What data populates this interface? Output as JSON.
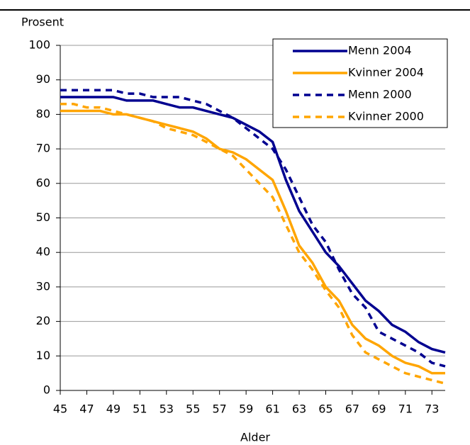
{
  "chart_data": {
    "type": "line",
    "y_label": "Prosent",
    "x_label": "Alder",
    "x": [
      45,
      46,
      47,
      48,
      49,
      50,
      51,
      52,
      53,
      54,
      55,
      56,
      57,
      58,
      59,
      60,
      61,
      62,
      63,
      64,
      65,
      66,
      67,
      68,
      69,
      70,
      71,
      72,
      73,
      74
    ],
    "series": [
      {
        "name": "Menn 2004",
        "color": "#000090",
        "dashed": false,
        "values": [
          85,
          85,
          85,
          85,
          85,
          84,
          84,
          84,
          83,
          82,
          82,
          81,
          80,
          79,
          77,
          75,
          72,
          61,
          52,
          46,
          40,
          36,
          31,
          26,
          23,
          19,
          17,
          14,
          12,
          11
        ]
      },
      {
        "name": "Kvinner 2004",
        "color": "#ffa500",
        "dashed": false,
        "values": [
          81,
          81,
          81,
          81,
          80,
          80,
          79,
          78,
          77,
          76,
          75,
          73,
          70,
          69,
          67,
          64,
          61,
          52,
          42,
          37,
          30,
          26,
          19,
          15,
          13,
          10,
          8,
          7,
          5,
          5
        ]
      },
      {
        "name": "Menn 2000",
        "color": "#000090",
        "dashed": true,
        "values": [
          87,
          87,
          87,
          87,
          87,
          86,
          86,
          85,
          85,
          85,
          84,
          83,
          81,
          79,
          76,
          73,
          70,
          64,
          56,
          48,
          43,
          35,
          28,
          24,
          17,
          15,
          13,
          11,
          8,
          7
        ]
      },
      {
        "name": "Kvinner 2000",
        "color": "#ffa500",
        "dashed": true,
        "values": [
          83,
          83,
          82,
          82,
          81,
          80,
          79,
          78,
          76,
          75,
          74,
          72,
          70,
          68,
          64,
          60,
          56,
          48,
          40,
          35,
          29,
          24,
          16,
          11,
          9,
          7,
          5,
          4,
          3,
          2
        ]
      }
    ],
    "xlim": [
      45,
      74
    ],
    "xticks": [
      45,
      47,
      49,
      51,
      53,
      55,
      57,
      59,
      61,
      63,
      65,
      67,
      69,
      71,
      73
    ],
    "ylim": [
      0,
      100
    ],
    "yticks": [
      0,
      10,
      20,
      30,
      40,
      50,
      60,
      70,
      80,
      90,
      100
    ],
    "grid": true,
    "legend": "upper right"
  }
}
